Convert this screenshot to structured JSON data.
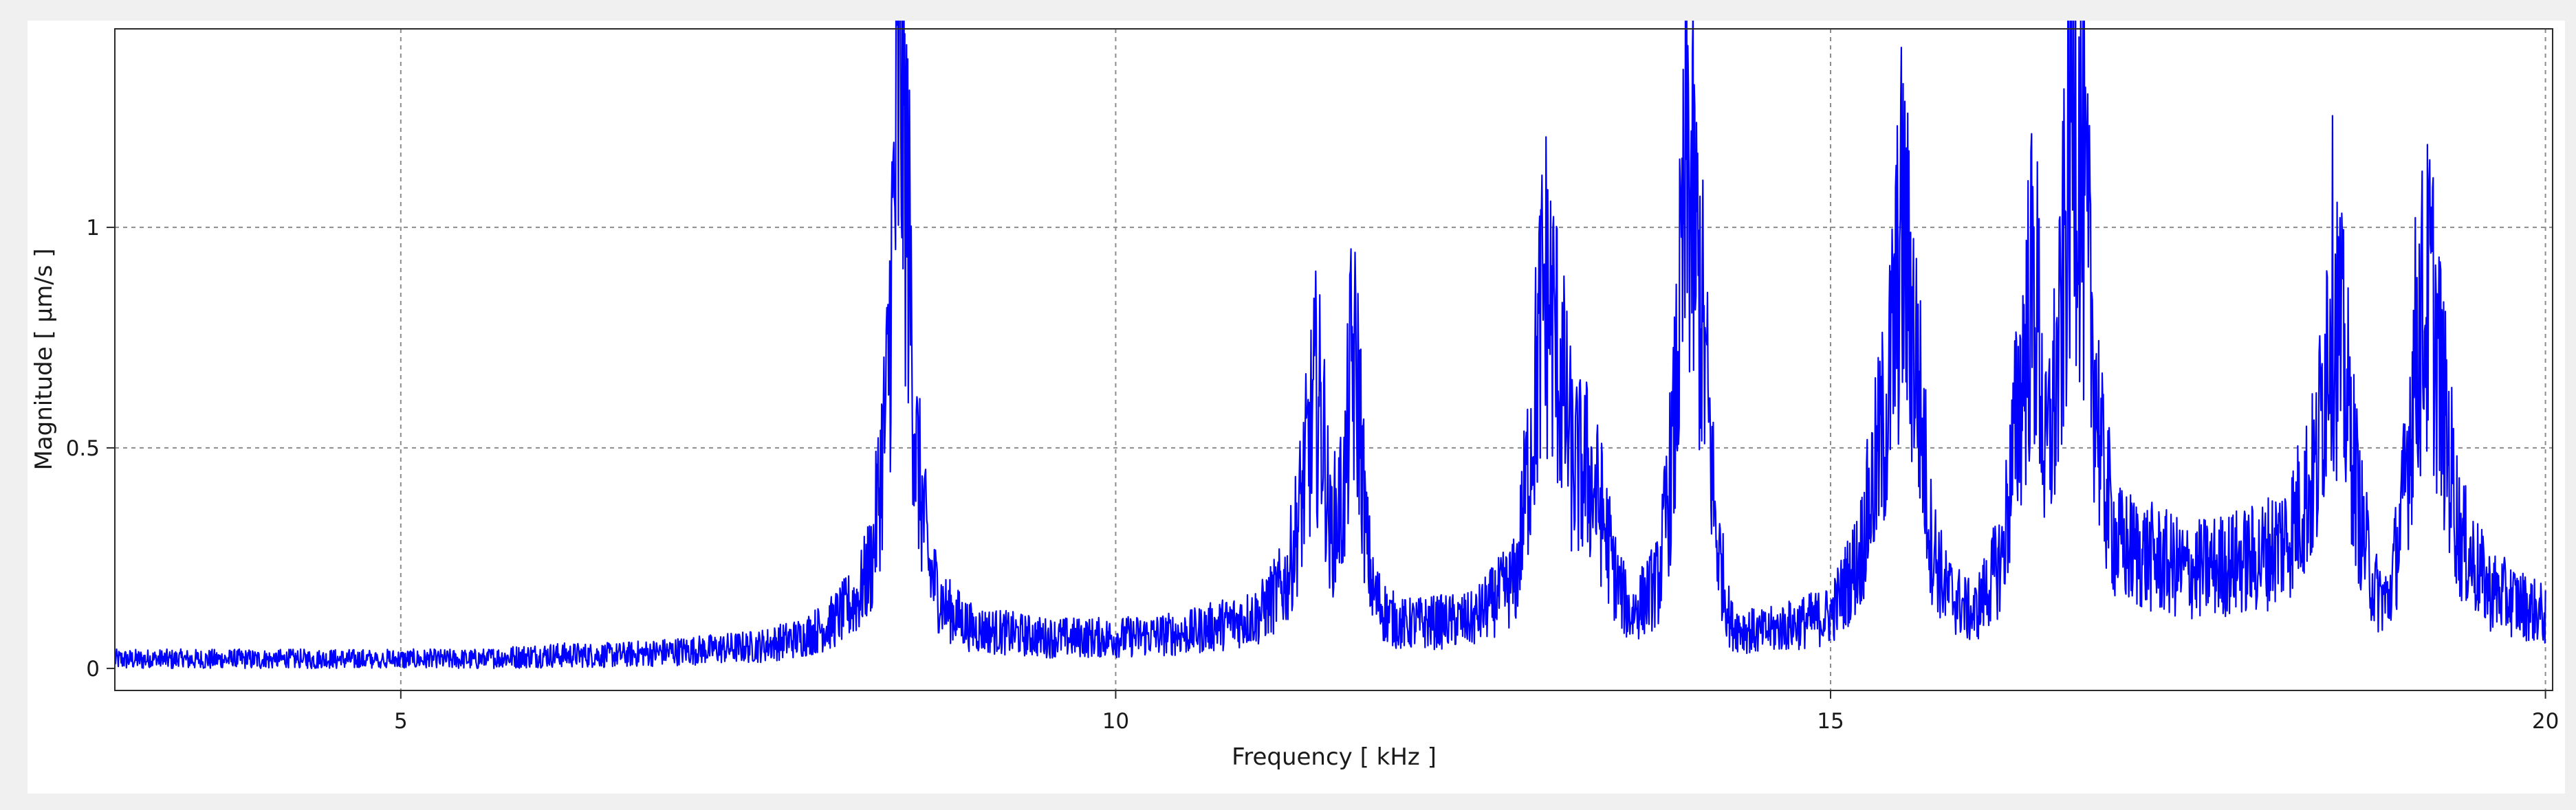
{
  "chart_data": {
    "type": "line",
    "title": "",
    "xlabel": "Frequency [ kHz ]",
    "ylabel": "Magnitude [ µm/s ]",
    "xlim": [
      3.0,
      20.05
    ],
    "ylim": [
      -0.05,
      1.45
    ],
    "xticks": [
      5,
      10,
      15,
      20
    ],
    "xtick_labels": [
      "5",
      "10",
      "15",
      "20"
    ],
    "yticks": [
      0,
      0.5,
      1
    ],
    "ytick_labels": [
      "0",
      "0.5",
      "1"
    ],
    "grid": true,
    "legend": "none",
    "series": [
      {
        "color": "#0000ff",
        "x": [
          3.0,
          3.5,
          4.0,
          4.5,
          5.0,
          5.5,
          6.0,
          6.5,
          7.0,
          7.5,
          7.8,
          8.0,
          8.2,
          8.3,
          8.4,
          8.45,
          8.5,
          8.55,
          8.6,
          8.7,
          8.8,
          9.0,
          9.5,
          10.0,
          10.5,
          11.0,
          11.2,
          11.3,
          11.4,
          11.45,
          11.5,
          11.6,
          11.65,
          11.7,
          11.75,
          11.8,
          11.9,
          12.0,
          12.5,
          12.8,
          12.9,
          13.0,
          13.1,
          13.2,
          13.3,
          13.4,
          13.5,
          13.6,
          13.8,
          13.9,
          14.0,
          14.1,
          14.2,
          14.3,
          14.5,
          15.0,
          15.2,
          15.4,
          15.5,
          15.6,
          15.7,
          15.8,
          16.0,
          16.2,
          16.3,
          16.4,
          16.45,
          16.5,
          16.6,
          16.7,
          16.8,
          16.9,
          17.0,
          17.5,
          18.0,
          18.2,
          18.4,
          18.5,
          18.6,
          18.7,
          18.8,
          18.9,
          19.0,
          19.1,
          19.2,
          19.3,
          19.4,
          19.6,
          20.0
        ],
        "y": [
          0.02,
          0.02,
          0.02,
          0.02,
          0.02,
          0.02,
          0.03,
          0.03,
          0.04,
          0.05,
          0.07,
          0.1,
          0.16,
          0.25,
          0.6,
          1.05,
          1.35,
          1.0,
          0.5,
          0.22,
          0.14,
          0.09,
          0.07,
          0.07,
          0.08,
          0.12,
          0.2,
          0.38,
          0.62,
          0.55,
          0.3,
          0.4,
          0.7,
          0.62,
          0.3,
          0.17,
          0.12,
          0.1,
          0.11,
          0.2,
          0.5,
          0.88,
          0.7,
          0.45,
          0.45,
          0.35,
          0.2,
          0.12,
          0.2,
          0.5,
          1.15,
          0.8,
          0.3,
          0.1,
          0.08,
          0.12,
          0.25,
          0.6,
          1.0,
          0.7,
          0.3,
          0.18,
          0.12,
          0.25,
          0.55,
          0.85,
          0.8,
          0.45,
          0.7,
          1.35,
          0.9,
          0.45,
          0.28,
          0.22,
          0.25,
          0.3,
          0.45,
          0.88,
          0.65,
          0.35,
          0.18,
          0.15,
          0.35,
          0.75,
          0.85,
          0.55,
          0.3,
          0.18,
          0.12
        ]
      }
    ]
  }
}
